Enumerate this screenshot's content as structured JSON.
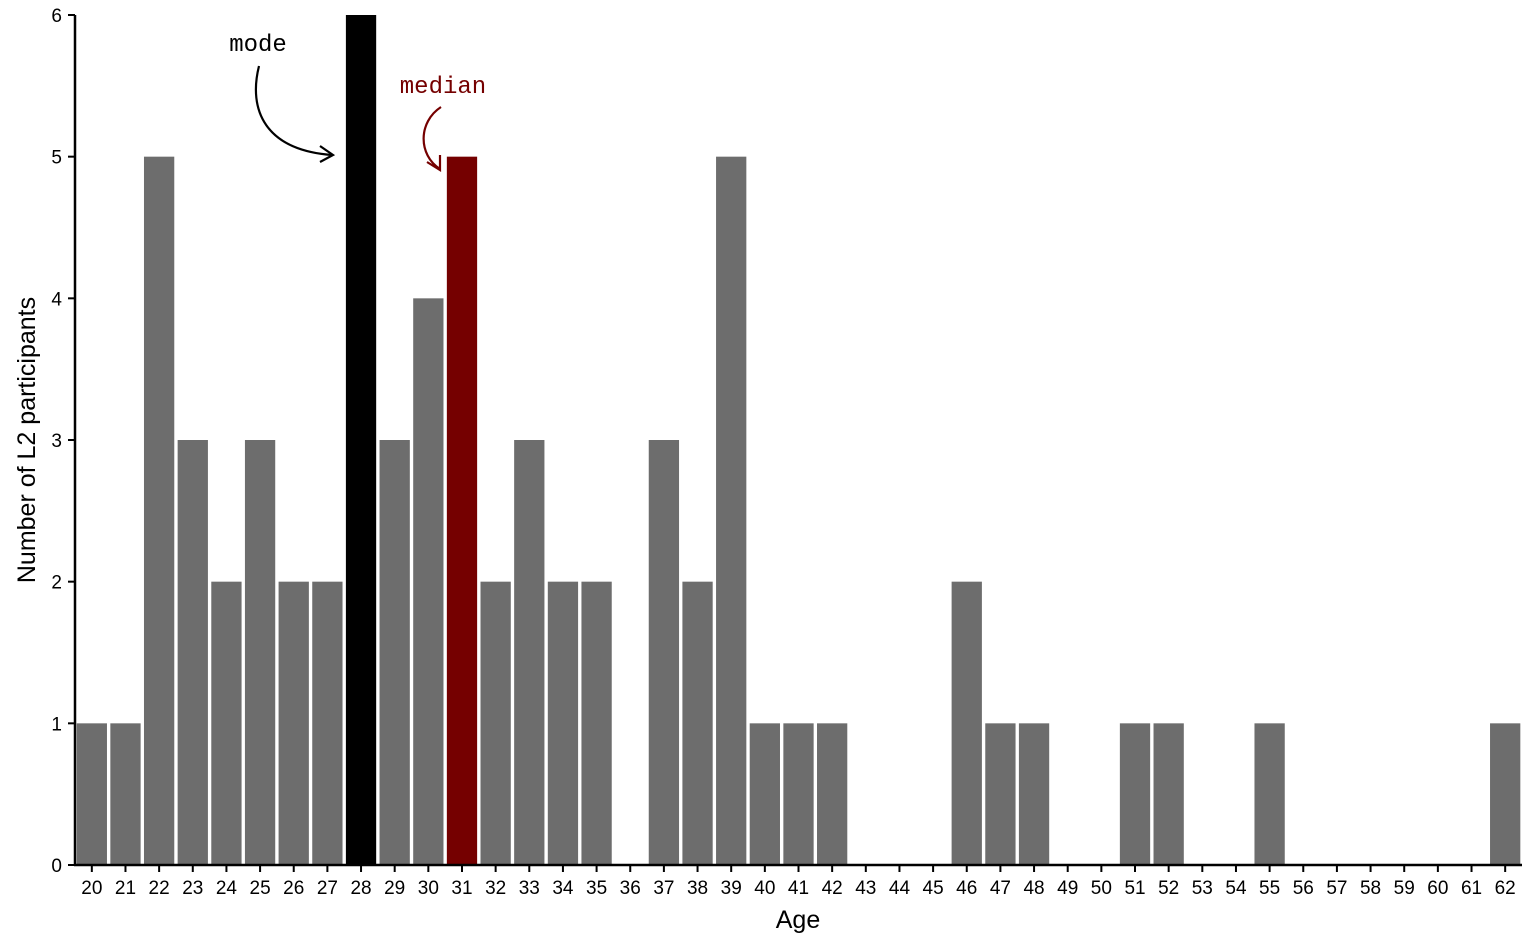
{
  "chart_data": {
    "type": "bar",
    "title": "",
    "xlabel": "Age",
    "ylabel": "Number of L2 participants",
    "ylim": [
      0,
      6
    ],
    "yticks": [
      0,
      1,
      2,
      3,
      4,
      5,
      6
    ],
    "grid": false,
    "legend": null,
    "categories": [
      "20",
      "21",
      "22",
      "23",
      "24",
      "25",
      "26",
      "27",
      "28",
      "29",
      "30",
      "31",
      "32",
      "33",
      "34",
      "35",
      "36",
      "37",
      "38",
      "39",
      "40",
      "41",
      "42",
      "43",
      "44",
      "45",
      "46",
      "47",
      "48",
      "49",
      "50",
      "51",
      "52",
      "53",
      "54",
      "55",
      "56",
      "57",
      "58",
      "59",
      "60",
      "61",
      "62"
    ],
    "values": [
      1,
      1,
      5,
      3,
      2,
      3,
      2,
      2,
      6,
      3,
      4,
      5,
      2,
      3,
      2,
      2,
      0,
      3,
      2,
      5,
      1,
      1,
      1,
      0,
      0,
      0,
      2,
      1,
      1,
      0,
      0,
      1,
      1,
      0,
      0,
      1,
      0,
      0,
      0,
      0,
      0,
      0,
      1
    ],
    "highlights": {
      "mode": {
        "category": "28",
        "value": 6,
        "color": "#000000"
      },
      "median": {
        "category": "31",
        "value": 5,
        "color": "#750000"
      }
    },
    "default_bar_color": "#6d6d6d",
    "annotations": [
      {
        "text": "mode",
        "color": "#000000",
        "points_to": "28"
      },
      {
        "text": "median",
        "color": "#750000",
        "points_to": "31"
      }
    ]
  }
}
